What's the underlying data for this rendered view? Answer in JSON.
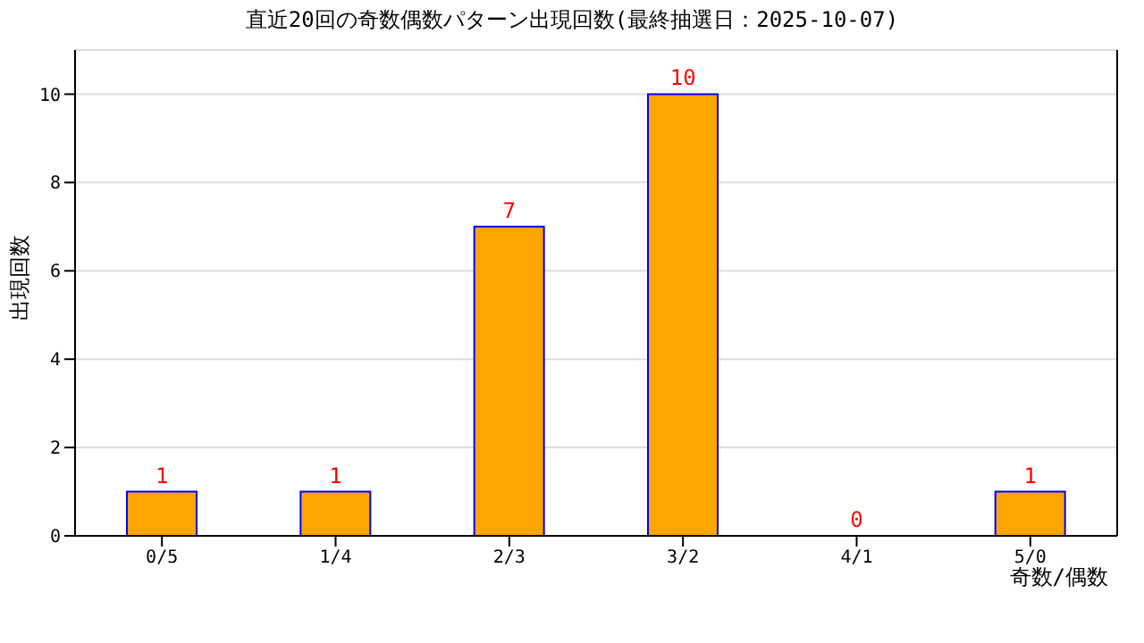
{
  "chart_data": {
    "type": "bar",
    "title": "直近20回の奇数偶数パターン出現回数(最終抽選日：2025-10-07)",
    "xlabel": "奇数/偶数",
    "ylabel": "出現回数",
    "categories": [
      "0/5",
      "1/4",
      "2/3",
      "3/2",
      "4/1",
      "5/0"
    ],
    "values": [
      1,
      1,
      7,
      10,
      0,
      1
    ],
    "color": "#ffa500",
    "ylim": [
      0,
      11
    ],
    "yticks": [
      0,
      2,
      4,
      6,
      8,
      10
    ],
    "grid": "y",
    "data_labels": true
  }
}
